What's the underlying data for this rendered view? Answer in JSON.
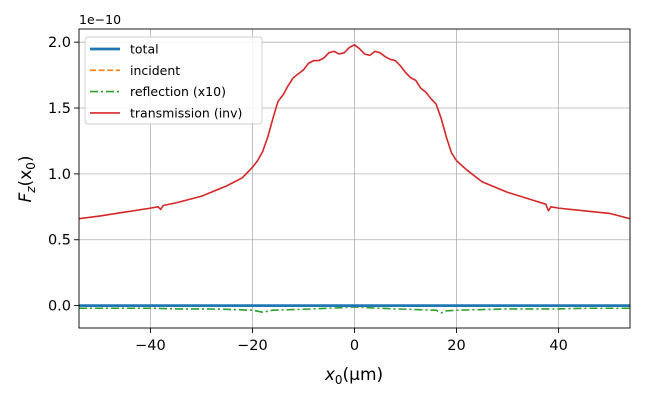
{
  "chart_data": {
    "type": "line",
    "title": "",
    "xlabel": "x",
    "xlabel_sub": "0",
    "xlabel_unit": "(μm)",
    "ylabel": "F",
    "ylabel_sub": "z",
    "ylabel_arg": "(x",
    "ylabel_arg_sub": "0",
    "ylabel_close": ")",
    "y_offset_text": "1e−10",
    "xlim": [
      -54,
      54
    ],
    "ylim": [
      -0.17,
      2.1
    ],
    "grid": true,
    "legend_position": "top-left",
    "xticks": [
      -40,
      -20,
      0,
      20,
      40
    ],
    "xtick_labels": [
      "−40",
      "−20",
      "0",
      "20",
      "40"
    ],
    "yticks": [
      0.0,
      0.5,
      1.0,
      1.5,
      2.0
    ],
    "ytick_labels": [
      "0.0",
      "0.5",
      "1.0",
      "1.5",
      "2.0"
    ],
    "series": [
      {
        "name": "total",
        "color": "#1f77b4",
        "style": "solid",
        "width": 2.8,
        "x": [
          -54,
          54
        ],
        "y": [
          0.0,
          0.0
        ]
      },
      {
        "name": "incident",
        "color": "#ff7f0e",
        "style": "dashed",
        "width": 1.6,
        "x": [
          -54,
          54
        ],
        "y": [
          0.0,
          0.0
        ]
      },
      {
        "name": "reflection (x10)",
        "color": "#2ca02c",
        "style": "dashdot",
        "width": 1.6,
        "x": [
          -54,
          -45,
          -40,
          -35,
          -30,
          -25,
          -20,
          -18,
          -16,
          -12,
          -8,
          -5,
          -2,
          0,
          2,
          5,
          8,
          12,
          16,
          17,
          18,
          20,
          25,
          30,
          35,
          40,
          45,
          54
        ],
        "y": [
          -0.02,
          -0.02,
          -0.02,
          -0.025,
          -0.025,
          -0.028,
          -0.035,
          -0.05,
          -0.035,
          -0.03,
          -0.025,
          -0.02,
          -0.015,
          -0.01,
          -0.015,
          -0.02,
          -0.025,
          -0.03,
          -0.035,
          -0.055,
          -0.04,
          -0.035,
          -0.03,
          -0.025,
          -0.025,
          -0.025,
          -0.02,
          -0.02
        ]
      },
      {
        "name": "transmission (inv)",
        "color": "#d62728",
        "style": "solid",
        "width": 1.6,
        "x": [
          -54,
          -50,
          -45,
          -40,
          -38.5,
          -38,
          -37.5,
          -35,
          -30,
          -25,
          -22,
          -20,
          -19,
          -18,
          -17,
          -16,
          -15,
          -14,
          -13,
          -12,
          -11,
          -10,
          -9,
          -8,
          -7,
          -6,
          -5,
          -4,
          -3,
          -2,
          -1,
          0,
          1,
          2,
          3,
          4,
          5,
          6,
          7,
          8,
          9,
          10,
          11,
          12,
          13,
          14,
          15,
          16,
          17,
          18,
          19,
          20,
          22,
          25,
          30,
          35,
          37.5,
          38,
          38.5,
          40,
          45,
          50,
          54
        ],
        "y": [
          0.66,
          0.68,
          0.71,
          0.74,
          0.75,
          0.73,
          0.76,
          0.78,
          0.83,
          0.91,
          0.97,
          1.05,
          1.1,
          1.17,
          1.28,
          1.42,
          1.55,
          1.6,
          1.67,
          1.73,
          1.76,
          1.79,
          1.84,
          1.86,
          1.86,
          1.88,
          1.92,
          1.93,
          1.91,
          1.92,
          1.96,
          1.98,
          1.95,
          1.91,
          1.9,
          1.93,
          1.92,
          1.89,
          1.87,
          1.86,
          1.82,
          1.77,
          1.73,
          1.71,
          1.65,
          1.62,
          1.57,
          1.53,
          1.42,
          1.28,
          1.16,
          1.1,
          1.03,
          0.94,
          0.86,
          0.8,
          0.77,
          0.72,
          0.75,
          0.74,
          0.72,
          0.7,
          0.66
        ]
      }
    ]
  }
}
